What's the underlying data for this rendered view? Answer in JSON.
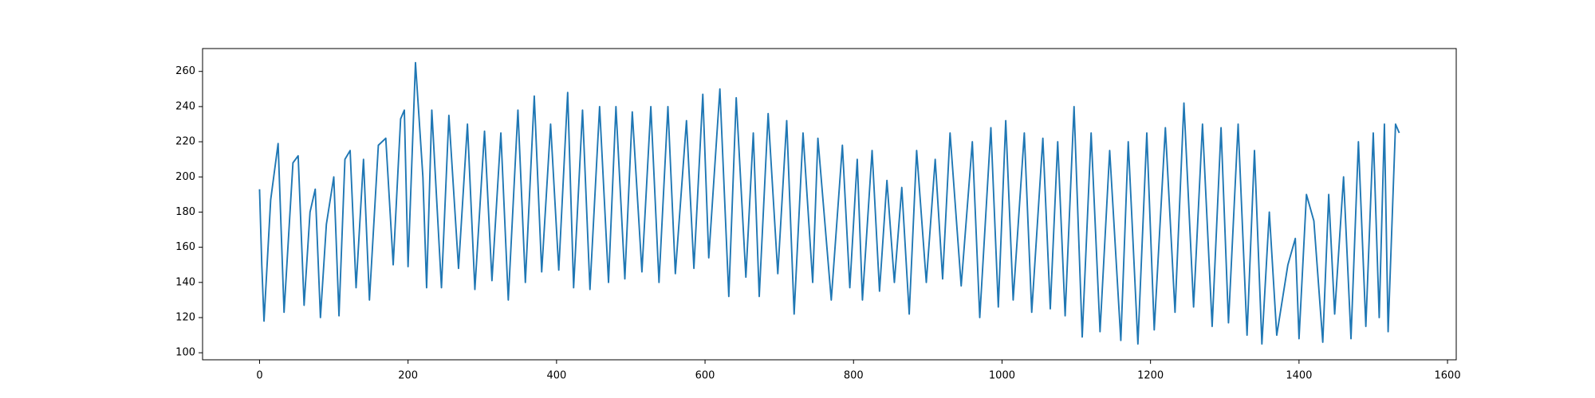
{
  "chart_data": {
    "type": "line",
    "x": [
      0,
      3,
      6,
      15,
      25,
      33,
      45,
      52,
      60,
      68,
      75,
      82,
      90,
      100,
      107,
      115,
      122,
      130,
      140,
      148,
      160,
      170,
      180,
      190,
      195,
      200,
      210,
      220,
      225,
      232,
      245,
      255,
      268,
      280,
      290,
      303,
      313,
      325,
      335,
      348,
      358,
      370,
      380,
      392,
      403,
      415,
      423,
      435,
      445,
      458,
      470,
      480,
      492,
      502,
      515,
      527,
      538,
      550,
      560,
      575,
      585,
      597,
      605,
      620,
      632,
      642,
      655,
      665,
      673,
      685,
      698,
      710,
      720,
      732,
      745,
      752,
      770,
      785,
      795,
      805,
      812,
      825,
      835,
      845,
      855,
      865,
      875,
      885,
      898,
      910,
      920,
      930,
      945,
      960,
      970,
      985,
      995,
      1005,
      1015,
      1030,
      1040,
      1055,
      1065,
      1075,
      1085,
      1097,
      1108,
      1120,
      1132,
      1145,
      1160,
      1170,
      1183,
      1195,
      1205,
      1220,
      1233,
      1245,
      1258,
      1270,
      1283,
      1295,
      1305,
      1318,
      1330,
      1340,
      1350,
      1360,
      1370,
      1385,
      1395,
      1400,
      1410,
      1420,
      1432,
      1440,
      1448,
      1460,
      1470,
      1480,
      1490,
      1500,
      1508,
      1515,
      1520,
      1530,
      1535
    ],
    "values": [
      193,
      150,
      118,
      187,
      219,
      123,
      208,
      212,
      127,
      180,
      193,
      120,
      173,
      200,
      121,
      210,
      215,
      137,
      210,
      130,
      218,
      222,
      150,
      233,
      238,
      149,
      265,
      200,
      137,
      238,
      137,
      235,
      148,
      230,
      136,
      226,
      141,
      225,
      130,
      238,
      140,
      246,
      146,
      230,
      147,
      248,
      137,
      238,
      136,
      240,
      140,
      240,
      142,
      237,
      146,
      240,
      140,
      240,
      145,
      232,
      148,
      247,
      154,
      250,
      132,
      245,
      143,
      225,
      132,
      236,
      145,
      232,
      122,
      225,
      140,
      222,
      130,
      218,
      137,
      210,
      130,
      215,
      135,
      198,
      140,
      194,
      122,
      215,
      140,
      210,
      142,
      225,
      138,
      220,
      120,
      228,
      126,
      232,
      130,
      225,
      123,
      222,
      125,
      220,
      121,
      240,
      109,
      225,
      112,
      215,
      107,
      220,
      105,
      225,
      113,
      228,
      123,
      242,
      126,
      230,
      115,
      228,
      117,
      230,
      110,
      215,
      105,
      180,
      110,
      150,
      165,
      108,
      190,
      175,
      106,
      190,
      122,
      200,
      108,
      220,
      115,
      225,
      120,
      230,
      112,
      230,
      225
    ],
    "color": "#1f77b4",
    "xlim": [
      -76.75,
      1611.75
    ],
    "xticks": [
      0,
      200,
      400,
      600,
      800,
      1000,
      1200,
      1400,
      1600
    ],
    "ylim": [
      96,
      273
    ],
    "yticks": [
      100,
      120,
      140,
      160,
      180,
      200,
      220,
      240,
      260
    ]
  }
}
